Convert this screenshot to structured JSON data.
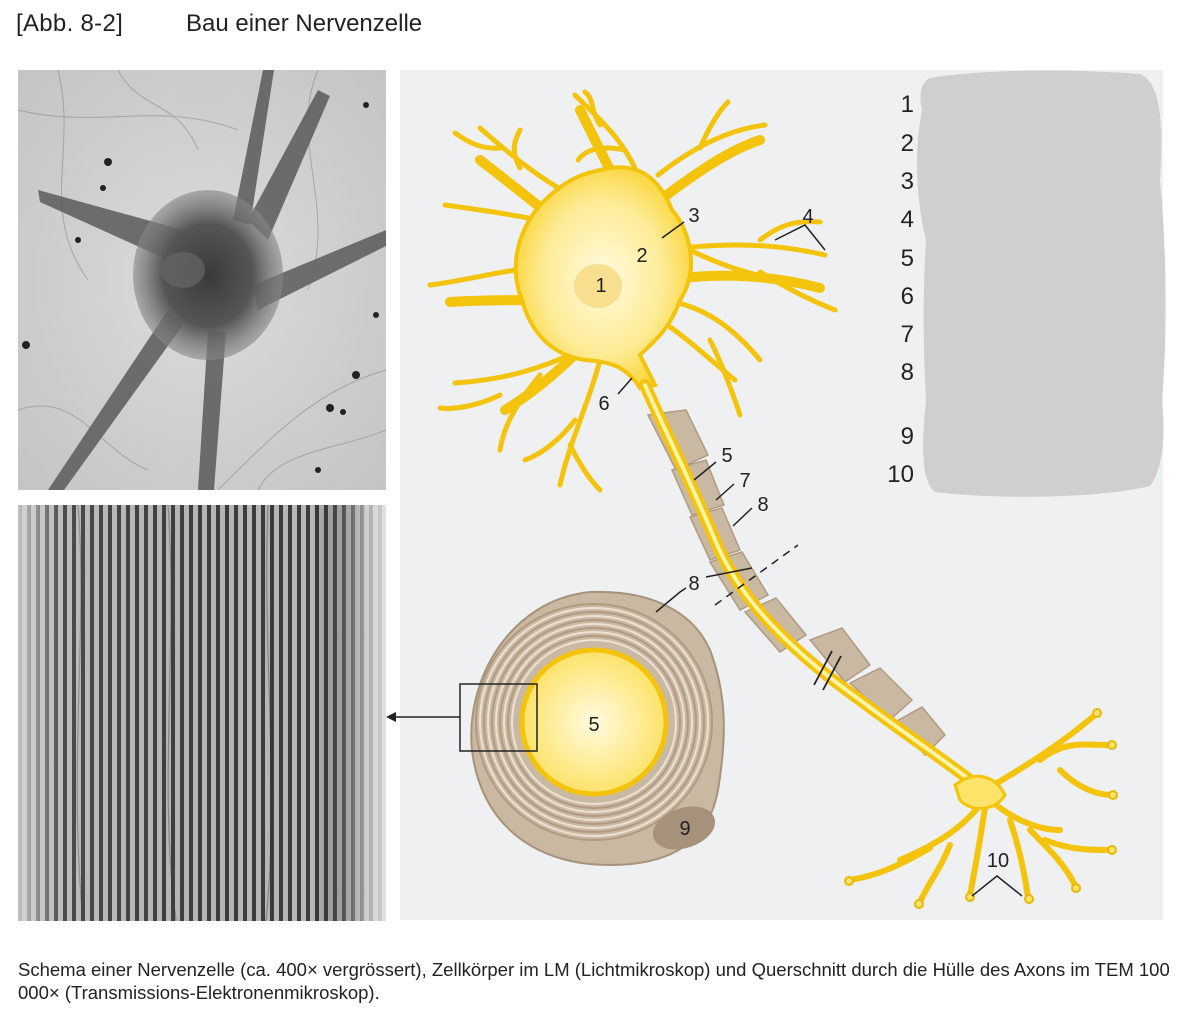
{
  "figure": {
    "number": "[Abb. 8-2]",
    "title": "Bau einer Nervenzelle"
  },
  "caption": "Schema einer Nervenzelle (ca. 400× vergrössert), Zellkörper im LM (Lichtmikroskop) und Querschnitt durch die Hülle des Axons im TEM 100 000× (Transmissions-Elektronenmikroskop).",
  "diagram_labels": {
    "cell_body": [
      "1",
      "2",
      "3",
      "6"
    ],
    "dendrite": "4",
    "axon": [
      "5",
      "7",
      "8"
    ],
    "cross_section": [
      "8",
      "5",
      "9"
    ],
    "terminal": "10"
  },
  "legend_numbers": [
    "1",
    "2",
    "3",
    "4",
    "5",
    "6",
    "7",
    "8",
    "9",
    "10"
  ],
  "colors": {
    "neuron_fill": "#fde36a",
    "neuron_outline": "#e8b800",
    "myelin": "#c9b8a2",
    "diagram_bg": "#eef0f2",
    "redaction": "#cfcfd1"
  }
}
